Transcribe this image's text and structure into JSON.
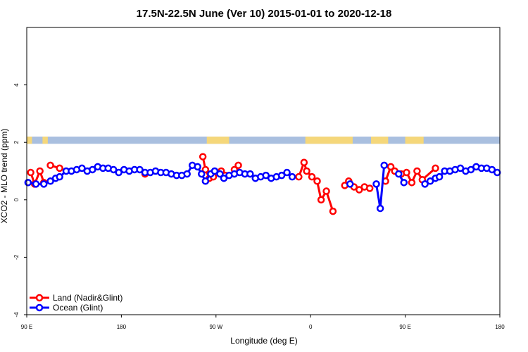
{
  "chart_data": {
    "type": "line",
    "title": "17.5N-22.5N June (Ver 10)   2015-01-01 to 2020-12-18",
    "xlabel": "Longitude (deg E)",
    "ylabel": "XCO2 - MLO trend (ppm)",
    "xlim": [
      90,
      450
    ],
    "ylim": [
      -4,
      6
    ],
    "x_ticks": [
      {
        "value": 90,
        "label": "90 E"
      },
      {
        "value": 162,
        "label": "180"
      },
      {
        "value": 234,
        "label": "90 W"
      },
      {
        "value": 306,
        "label": "0"
      },
      {
        "value": 378,
        "label": "90 E"
      },
      {
        "value": 450,
        "label": "180"
      }
    ],
    "y_ticks": [
      {
        "value": -4,
        "label": "-4"
      },
      {
        "value": -2,
        "label": "-2"
      },
      {
        "value": 0,
        "label": "0"
      },
      {
        "value": 2,
        "label": "2"
      },
      {
        "value": 4,
        "label": "4"
      }
    ],
    "legend_position": "bottom-left",
    "land_ocean_strip": {
      "y_range": [
        1.95,
        2.2
      ],
      "ocean_color": "#a9bfdf",
      "land_color": "#f5d77a",
      "land_segments": [
        [
          90,
          94
        ],
        [
          102,
          106
        ],
        [
          227,
          244
        ],
        [
          302,
          338
        ],
        [
          352,
          365
        ],
        [
          378,
          392
        ]
      ]
    },
    "series": [
      {
        "name": "Land (Nadir&Glint)",
        "color": "#ff0000",
        "segments": [
          {
            "x": [
              93,
              96,
              100,
              103
            ],
            "y": [
              0.95,
              0.55,
              1.0,
              0.6
            ]
          },
          {
            "x": [
              108,
              115
            ],
            "y": [
              1.2,
              1.1
            ]
          },
          {
            "x": [
              180
            ],
            "y": [
              0.9
            ]
          },
          {
            "x": [
              224,
              226,
              229,
              232
            ],
            "y": [
              1.5,
              1.05,
              0.75,
              0.8
            ]
          },
          {
            "x": [
              238,
              241
            ],
            "y": [
              1.0,
              0.85
            ]
          },
          {
            "x": [
              248,
              251
            ],
            "y": [
              1.05,
              1.2
            ]
          },
          {
            "x": [
              297,
              301,
              303,
              307,
              311,
              314,
              318,
              323
            ],
            "y": [
              0.8,
              1.3,
              1.0,
              0.8,
              0.65,
              0.0,
              0.3,
              -0.4
            ]
          },
          {
            "x": [
              332,
              335
            ],
            "y": [
              0.5,
              0.65
            ]
          },
          {
            "x": [
              339,
              343,
              347,
              351
            ],
            "y": [
              0.45,
              0.35,
              0.45,
              0.4
            ]
          },
          {
            "x": [
              363,
              367,
              370
            ],
            "y": [
              0.65,
              1.15,
              1.0
            ]
          },
          {
            "x": [
              375,
              379,
              383,
              387,
              391,
              401
            ],
            "y": [
              0.9,
              0.95,
              0.6,
              1.0,
              0.7,
              1.1
            ]
          }
        ]
      },
      {
        "name": "Ocean (Glint)",
        "color": "#0000ff",
        "segments": [
          {
            "x": [
              91,
              97,
              103,
              108,
              112,
              115,
              120,
              124,
              128,
              132,
              136,
              140,
              144,
              148,
              152,
              156,
              160,
              164,
              168,
              172,
              176,
              180,
              184,
              188,
              192,
              196,
              200,
              204,
              208,
              212,
              216,
              220,
              223,
              226,
              230,
              233,
              237,
              240,
              244,
              248,
              252,
              256,
              260,
              264,
              268,
              272,
              276,
              280,
              284,
              288,
              292
            ],
            "y": [
              0.6,
              0.55,
              0.55,
              0.65,
              0.75,
              0.8,
              1.0,
              1.0,
              1.05,
              1.1,
              1.0,
              1.05,
              1.15,
              1.1,
              1.1,
              1.05,
              0.95,
              1.05,
              1.0,
              1.05,
              1.05,
              0.95,
              0.95,
              1.0,
              0.95,
              0.95,
              0.9,
              0.85,
              0.85,
              0.9,
              1.2,
              1.15,
              0.9,
              0.65,
              0.9,
              1.0,
              0.9,
              0.75,
              0.85,
              0.9,
              0.95,
              0.9,
              0.9,
              0.75,
              0.8,
              0.85,
              0.75,
              0.8,
              0.85,
              0.95,
              0.8
            ]
          },
          {
            "x": [
              336
            ],
            "y": [
              0.55
            ]
          },
          {
            "x": [
              356,
              359,
              362
            ],
            "y": [
              0.55,
              -0.3,
              1.2
            ]
          },
          {
            "x": [
              373,
              377
            ],
            "y": [
              0.9,
              0.6
            ]
          },
          {
            "x": [
              393,
              397,
              401,
              404,
              408,
              412,
              416,
              420,
              424,
              428,
              432,
              436,
              440,
              444,
              448
            ],
            "y": [
              0.55,
              0.65,
              0.75,
              0.8,
              1.0,
              1.0,
              1.05,
              1.1,
              1.0,
              1.05,
              1.15,
              1.1,
              1.1,
              1.05,
              0.95
            ]
          }
        ]
      }
    ]
  }
}
